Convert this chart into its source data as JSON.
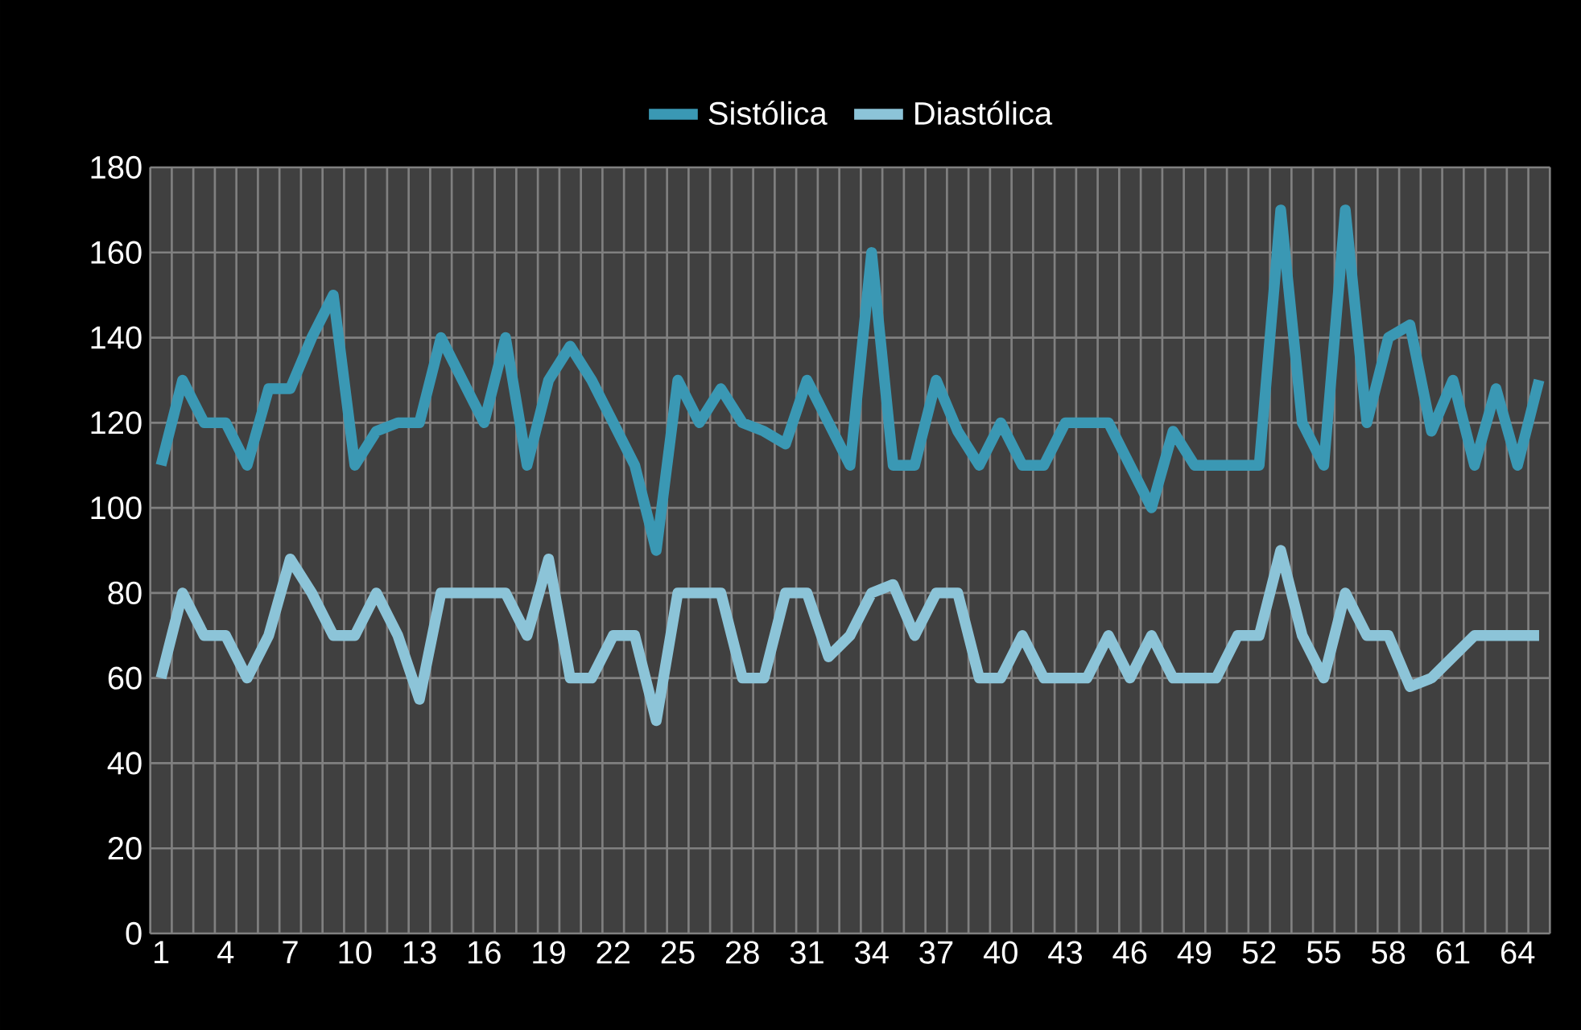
{
  "chart_data": {
    "type": "line",
    "categories": [
      "1",
      null,
      null,
      "4",
      null,
      null,
      "7",
      null,
      null,
      "10",
      null,
      null,
      "13",
      null,
      null,
      "16",
      null,
      null,
      "19",
      null,
      null,
      "22",
      null,
      null,
      "25",
      null,
      null,
      "28",
      null,
      null,
      "31",
      null,
      null,
      "34",
      null,
      null,
      "37",
      null,
      null,
      "40",
      null,
      null,
      "43",
      null,
      null,
      "46",
      null,
      null,
      "49",
      null,
      null,
      "52",
      null,
      null,
      "55",
      null,
      null,
      "58",
      null,
      null,
      "61",
      null,
      null,
      "64",
      null
    ],
    "series": [
      {
        "name": "Sistólica",
        "color": "#3a98b4",
        "values": [
          110,
          130,
          120,
          120,
          110,
          128,
          128,
          140,
          150,
          110,
          118,
          120,
          120,
          140,
          130,
          120,
          140,
          110,
          130,
          138,
          130,
          120,
          110,
          90,
          130,
          120,
          128,
          120,
          118,
          115,
          130,
          120,
          110,
          160,
          110,
          110,
          130,
          118,
          110,
          120,
          110,
          110,
          120,
          120,
          120,
          110,
          100,
          118,
          110,
          110,
          110,
          110,
          170,
          120,
          110,
          170,
          120,
          140,
          143,
          118,
          130,
          110,
          128,
          110,
          130
        ]
      },
      {
        "name": "Diastólica",
        "color": "#8cc4d8",
        "values": [
          60,
          80,
          70,
          70,
          60,
          70,
          88,
          80,
          70,
          70,
          80,
          70,
          55,
          80,
          80,
          80,
          80,
          70,
          88,
          60,
          60,
          70,
          70,
          50,
          80,
          80,
          80,
          60,
          60,
          80,
          80,
          65,
          70,
          80,
          82,
          70,
          80,
          80,
          60,
          60,
          70,
          60,
          60,
          60,
          70,
          60,
          70,
          60,
          60,
          60,
          70,
          70,
          90,
          70,
          60,
          80,
          70,
          70,
          58,
          60,
          65,
          70,
          70,
          70,
          70
        ]
      }
    ],
    "ylim": [
      0,
      180
    ],
    "yticks": [
      0,
      20,
      40,
      60,
      80,
      100,
      120,
      140,
      160,
      180
    ],
    "grid": true,
    "legend": "top",
    "marker": "none",
    "line_style": "solid"
  }
}
